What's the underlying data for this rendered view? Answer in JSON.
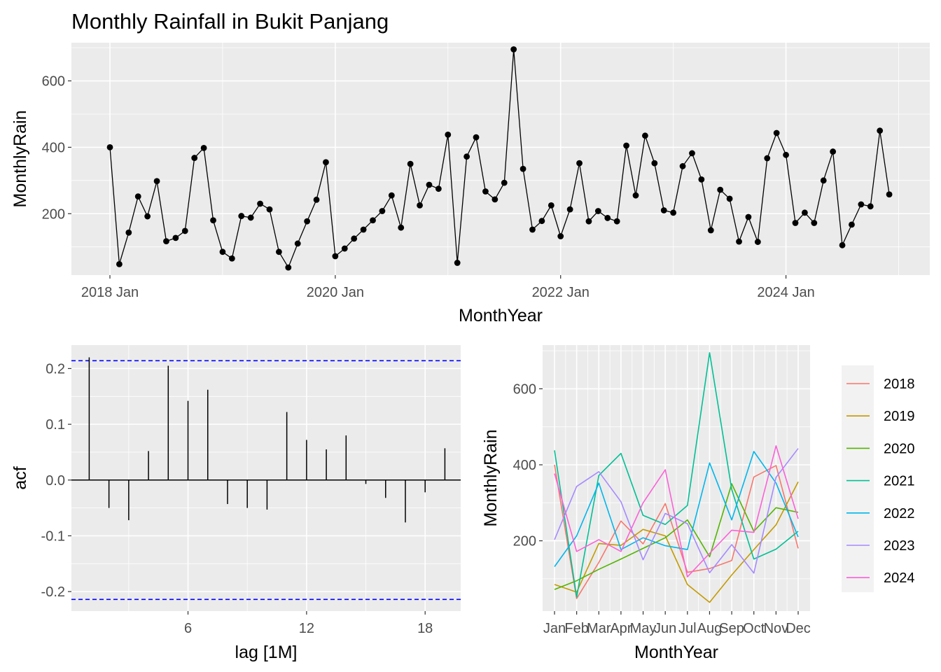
{
  "chart_data": [
    {
      "type": "line",
      "title": "Monthly Rainfall in Bukit Panjang",
      "xlabel": "MonthYear",
      "ylabel": "MonthlyRain",
      "x_tick_labels": [
        "2018 Jan",
        "2020 Jan",
        "2022 Jan",
        "2024 Jan"
      ],
      "y_ticks": [
        200,
        400,
        600
      ],
      "ylim": [
        15,
        715
      ],
      "x_start": "2018 Jan",
      "points": "markers",
      "series": [
        {
          "values": [
            400,
            48,
            143,
            252,
            192,
            298,
            117,
            127,
            148,
            368,
            398,
            180,
            85,
            65,
            193,
            188,
            230,
            213,
            85,
            38,
            110,
            177,
            242,
            355,
            72,
            95,
            125,
            152,
            180,
            208,
            255,
            158,
            350,
            225,
            287,
            275,
            438,
            52,
            372,
            430,
            267,
            243,
            293,
            695,
            335,
            152,
            178,
            225,
            132,
            213,
            352,
            177,
            208,
            187,
            177,
            405,
            255,
            435,
            352,
            210,
            203,
            343,
            382,
            303,
            150,
            272,
            245,
            116,
            190,
            115,
            367,
            443,
            377,
            172,
            203,
            172,
            300,
            387,
            105,
            167,
            228,
            222,
            450,
            258
          ]
        }
      ]
    },
    {
      "type": "bar",
      "xlabel": "lag [1M]",
      "ylabel": "acf",
      "x_ticks": [
        6,
        12,
        18
      ],
      "y_ticks": [
        -0.2,
        -0.1,
        0.0,
        0.1,
        0.2
      ],
      "y_tick_labels": [
        "-0.2",
        "-0.1",
        "0.0",
        "0.1",
        "0.2"
      ],
      "xlim": [
        0.1,
        19.8
      ],
      "ylim": [
        -0.235,
        0.242
      ],
      "confidence_bound": 0.214,
      "lags": [
        1,
        2,
        3,
        4,
        5,
        6,
        7,
        8,
        9,
        10,
        11,
        12,
        13,
        14,
        15,
        16,
        17,
        18,
        19
      ],
      "values": [
        0.22,
        -0.05,
        -0.072,
        0.052,
        0.205,
        0.142,
        0.162,
        -0.043,
        -0.05,
        -0.053,
        0.122,
        0.072,
        0.055,
        0.08,
        -0.007,
        -0.032,
        -0.076,
        -0.022,
        0.057
      ]
    },
    {
      "type": "line",
      "xlabel": "MonthYear",
      "ylabel": "MonthlyRain",
      "categories": [
        "Jan",
        "Feb",
        "Mar",
        "Apr",
        "May",
        "Jun",
        "Jul",
        "Aug",
        "Sep",
        "Oct",
        "Nov",
        "Dec"
      ],
      "y_ticks": [
        200,
        400,
        600
      ],
      "ylim": [
        15,
        715
      ],
      "legend_position": "right",
      "series": [
        {
          "name": "2018",
          "color": "#F8766D",
          "values": [
            400,
            48,
            143,
            252,
            192,
            298,
            117,
            127,
            148,
            368,
            398,
            180
          ]
        },
        {
          "name": "2019",
          "color": "#C49A00",
          "values": [
            85,
            65,
            193,
            188,
            230,
            213,
            85,
            38,
            110,
            177,
            242,
            355
          ]
        },
        {
          "name": "2020",
          "color": "#53B400",
          "values": [
            72,
            95,
            125,
            152,
            180,
            208,
            255,
            158,
            350,
            225,
            287,
            275
          ]
        },
        {
          "name": "2021",
          "color": "#00C094",
          "values": [
            438,
            52,
            372,
            430,
            267,
            243,
            293,
            695,
            335,
            152,
            178,
            225
          ]
        },
        {
          "name": "2022",
          "color": "#00B6EB",
          "values": [
            132,
            213,
            352,
            177,
            208,
            187,
            177,
            405,
            255,
            435,
            352,
            210
          ]
        },
        {
          "name": "2023",
          "color": "#A58AFF",
          "values": [
            203,
            343,
            382,
            303,
            150,
            272,
            245,
            116,
            190,
            115,
            367,
            443
          ]
        },
        {
          "name": "2024",
          "color": "#FB61D7",
          "values": [
            377,
            172,
            203,
            172,
            300,
            387,
            105,
            167,
            228,
            222,
            450,
            258
          ]
        }
      ]
    }
  ]
}
